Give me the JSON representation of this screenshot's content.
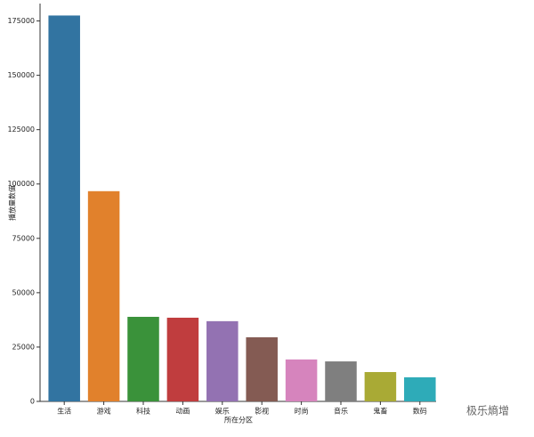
{
  "chart_data": {
    "type": "bar",
    "categories": [
      "生活",
      "游戏",
      "科技",
      "动画",
      "娱乐",
      "影视",
      "时尚",
      "音乐",
      "鬼畜",
      "数码"
    ],
    "values": [
      177500,
      96700,
      38900,
      38500,
      36900,
      29500,
      19300,
      18400,
      13500,
      11100
    ],
    "colors": [
      "#3274a1",
      "#e1812c",
      "#3a923a",
      "#c03d3e",
      "#9372b2",
      "#845b53",
      "#d684bd",
      "#7f7f7f",
      "#a9aa35",
      "#2eabb8"
    ],
    "ylim": [
      0,
      183000
    ],
    "yticks": [
      0,
      25000,
      50000,
      75000,
      100000,
      125000,
      150000,
      175000
    ],
    "y_label": "播放量数值",
    "x_label": "所在分区",
    "watermark": "极乐熵增"
  }
}
